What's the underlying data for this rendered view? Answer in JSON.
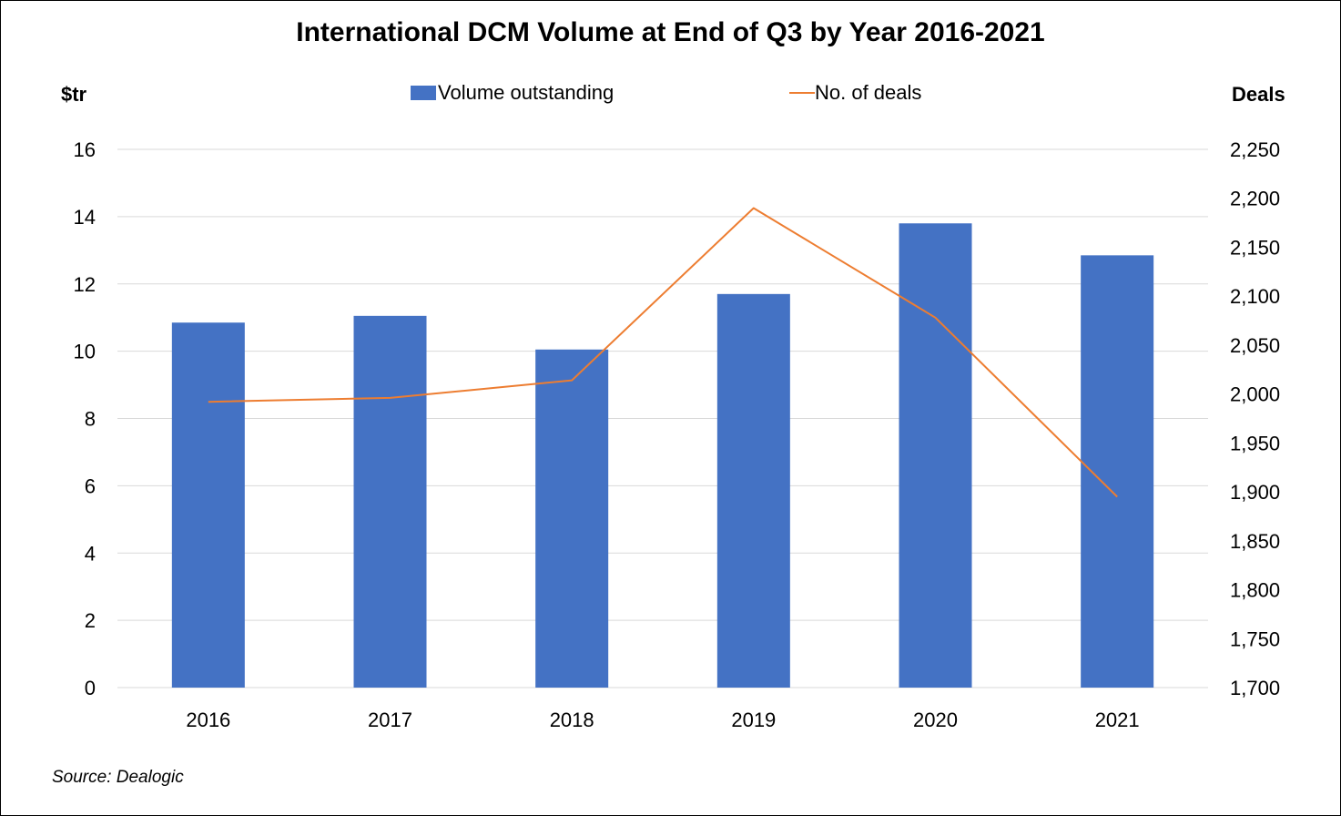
{
  "chart_data": {
    "type": "bar",
    "title": "International DCM Volume at End of Q3 by Year 2016-2021",
    "categories": [
      "2016",
      "2017",
      "2018",
      "2019",
      "2020",
      "2021"
    ],
    "series": [
      {
        "name": "Volume outstanding",
        "type": "bar",
        "axis": "left",
        "values": [
          10.85,
          11.05,
          10.05,
          11.7,
          13.8,
          12.85
        ],
        "color": "#4472C4"
      },
      {
        "name": "No. of deals",
        "type": "line",
        "axis": "right",
        "values": [
          1992,
          1996,
          2014,
          2190,
          2078,
          1895
        ],
        "color": "#ED7D31"
      }
    ],
    "ylabel": "$tr",
    "ylabel_right": "Deals",
    "ylim": [
      0,
      16
    ],
    "ylim_right": [
      1700,
      2250
    ],
    "yticks": [
      "0",
      "2",
      "4",
      "6",
      "8",
      "10",
      "12",
      "14",
      "16"
    ],
    "yticks_right": [
      "1,700",
      "1,750",
      "1,800",
      "1,850",
      "1,900",
      "1,950",
      "2,000",
      "2,050",
      "2,100",
      "2,150",
      "2,200",
      "2,250"
    ],
    "grid": true,
    "legend": "top-center",
    "grid_color": "#D9D9D9"
  },
  "source": "Source: Dealogic"
}
